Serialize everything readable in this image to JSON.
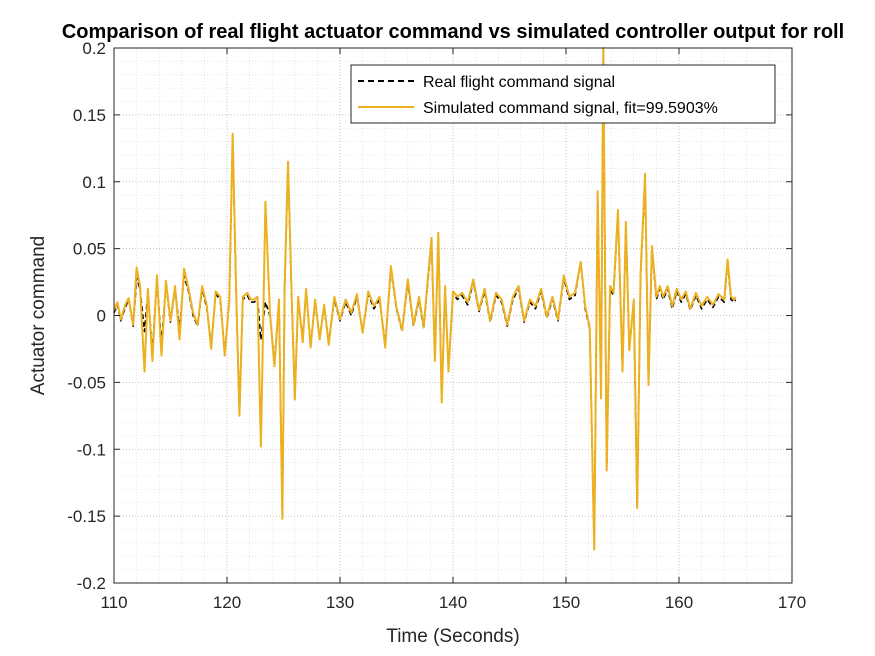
{
  "chart_data": {
    "type": "line",
    "title": "Comparison of real flight actuator command vs simulated controller output for roll",
    "xlabel": "Time (Seconds)",
    "ylabel": "Actuator command",
    "xlim": [
      110,
      170
    ],
    "ylim": [
      -0.2,
      0.2
    ],
    "xticks": [
      110,
      120,
      130,
      140,
      150,
      160,
      170
    ],
    "yticks": [
      -0.2,
      -0.15,
      -0.1,
      -0.05,
      0,
      0.05,
      0.1,
      0.15,
      0.2
    ],
    "ytick_labels": [
      "-0.2",
      "-0.15",
      "-0.1",
      "-0.05",
      "0",
      "0.05",
      "0.1",
      "0.15",
      "0.2"
    ],
    "grid": "major and minor, dotted",
    "legend_position": "top-right",
    "series": [
      {
        "name": "Real flight command signal",
        "color": "#000000",
        "style": "dashed",
        "x": [
          110,
          110.3,
          110.6,
          111,
          111.3,
          111.7,
          112,
          112.3,
          112.7,
          113,
          113.4,
          113.8,
          114.2,
          114.6,
          115,
          115.4,
          115.8,
          116.2,
          116.6,
          117,
          117.4,
          117.8,
          118.2,
          118.6,
          119,
          119.4,
          119.8,
          120.2,
          120.5,
          120.8,
          121.1,
          121.4,
          121.8,
          122.1,
          122.4,
          122.7,
          123,
          123.4,
          123.8,
          124.2,
          124.6,
          124.9,
          125.1,
          125.4,
          125.7,
          126,
          126.3,
          126.7,
          127,
          127.4,
          127.8,
          128.2,
          128.6,
          129,
          129.5,
          130,
          130.5,
          131,
          131.5,
          132,
          132.5,
          133,
          133.5,
          134,
          134.5,
          135,
          135.5,
          136,
          136.5,
          137,
          137.4,
          137.8,
          138.1,
          138.4,
          138.7,
          139,
          139.3,
          139.6,
          140,
          140.4,
          140.8,
          141.3,
          141.8,
          142.3,
          142.8,
          143.3,
          143.8,
          144.3,
          144.8,
          145.3,
          145.8,
          146.3,
          146.8,
          147.3,
          147.8,
          148.3,
          148.8,
          149.3,
          149.8,
          150.3,
          150.8,
          151.3,
          151.7,
          152.1,
          152.5,
          152.8,
          153.1,
          153.3,
          153.6,
          153.9,
          154.2,
          154.6,
          155,
          155.3,
          155.6,
          156,
          156.3,
          156.6,
          157,
          157.3,
          157.6,
          158,
          158.3,
          158.6,
          159,
          159.4,
          159.8,
          160.2,
          160.6,
          161,
          161.5,
          162,
          162.5,
          163,
          163.5,
          164,
          164.3,
          164.6,
          164.9,
          165
        ],
        "y": [
          0.002,
          0.008,
          -0.004,
          0.006,
          0.012,
          -0.008,
          0.028,
          0.02,
          -0.012,
          0.018,
          -0.028,
          0.028,
          -0.022,
          0.024,
          -0.005,
          0.02,
          -0.01,
          0.03,
          0.018,
          0.0,
          -0.008,
          0.02,
          0.006,
          -0.022,
          0.016,
          0.012,
          -0.028,
          0.01,
          0.132,
          0.02,
          -0.074,
          0.012,
          0.015,
          0.01,
          0.01,
          0.012,
          -0.018,
          0.01,
          0.0,
          -0.035,
          0.01,
          -0.151,
          0.02,
          0.113,
          0.02,
          -0.062,
          0.012,
          -0.018,
          0.018,
          -0.022,
          0.01,
          -0.016,
          0.006,
          -0.02,
          0.012,
          -0.004,
          0.01,
          0.0,
          0.014,
          -0.012,
          0.016,
          0.005,
          0.012,
          -0.022,
          0.035,
          0.005,
          -0.012,
          0.025,
          -0.008,
          0.012,
          -0.01,
          0.028,
          0.055,
          -0.032,
          0.06,
          -0.063,
          0.02,
          -0.04,
          0.016,
          0.012,
          0.015,
          0.008,
          0.025,
          0.003,
          0.018,
          -0.005,
          0.015,
          0.01,
          -0.008,
          0.012,
          0.02,
          -0.005,
          0.01,
          0.005,
          0.018,
          -0.002,
          0.012,
          -0.004,
          0.028,
          0.012,
          0.015,
          0.04,
          0.005,
          -0.01,
          -0.174,
          0.092,
          -0.06,
          0.2,
          -0.115,
          0.02,
          0.015,
          0.077,
          -0.04,
          0.068,
          -0.025,
          0.01,
          -0.143,
          0.03,
          0.102,
          -0.052,
          0.05,
          0.012,
          0.02,
          0.012,
          0.02,
          0.005,
          0.018,
          0.01,
          0.016,
          0.004,
          0.015,
          0.005,
          0.012,
          0.006,
          0.014,
          0.01,
          0.04,
          0.012,
          0.01,
          0.012
        ]
      },
      {
        "name": "Simulated command signal, fit=99.5903%",
        "color": "#EDB120",
        "style": "solid",
        "x": [
          110,
          110.3,
          110.6,
          111,
          111.3,
          111.7,
          112,
          112.3,
          112.7,
          113,
          113.4,
          113.8,
          114.2,
          114.6,
          115,
          115.4,
          115.8,
          116.2,
          116.6,
          117,
          117.4,
          117.8,
          118.2,
          118.6,
          119,
          119.4,
          119.8,
          120.2,
          120.5,
          120.8,
          121.1,
          121.4,
          121.8,
          122.1,
          122.4,
          122.7,
          123,
          123.4,
          123.8,
          124.2,
          124.6,
          124.9,
          125.1,
          125.4,
          125.7,
          126,
          126.3,
          126.7,
          127,
          127.4,
          127.8,
          128.2,
          128.6,
          129,
          129.5,
          130,
          130.5,
          131,
          131.5,
          132,
          132.5,
          133,
          133.5,
          134,
          134.5,
          135,
          135.5,
          136,
          136.5,
          137,
          137.4,
          137.8,
          138.1,
          138.4,
          138.7,
          139,
          139.3,
          139.6,
          140,
          140.4,
          140.8,
          141.3,
          141.8,
          142.3,
          142.8,
          143.3,
          143.8,
          144.3,
          144.8,
          145.3,
          145.8,
          146.3,
          146.8,
          147.3,
          147.8,
          148.3,
          148.8,
          149.3,
          149.8,
          150.3,
          150.8,
          151.3,
          151.7,
          152.1,
          152.5,
          152.8,
          153.1,
          153.3,
          153.6,
          153.9,
          154.2,
          154.6,
          155,
          155.3,
          155.6,
          156,
          156.3,
          156.6,
          157,
          157.3,
          157.6,
          158,
          158.3,
          158.6,
          159,
          159.4,
          159.8,
          160.2,
          160.6,
          161,
          161.5,
          162,
          162.5,
          163,
          163.5,
          164,
          164.3,
          164.6,
          164.9,
          165
        ],
        "y": [
          0.004,
          0.01,
          -0.003,
          0.008,
          0.013,
          -0.007,
          0.036,
          0.022,
          -0.042,
          0.02,
          -0.034,
          0.03,
          -0.03,
          0.026,
          -0.004,
          0.022,
          -0.018,
          0.035,
          0.02,
          0.002,
          -0.007,
          0.022,
          0.008,
          -0.025,
          0.018,
          0.014,
          -0.03,
          0.012,
          0.136,
          0.022,
          -0.075,
          0.014,
          0.017,
          0.012,
          0.012,
          0.014,
          -0.098,
          0.085,
          0.002,
          -0.038,
          0.012,
          -0.152,
          0.022,
          0.115,
          0.022,
          -0.063,
          0.014,
          -0.02,
          0.02,
          -0.024,
          0.012,
          -0.018,
          0.008,
          -0.022,
          0.014,
          -0.003,
          0.012,
          0.002,
          0.016,
          -0.013,
          0.018,
          0.007,
          0.014,
          -0.024,
          0.037,
          0.006,
          -0.011,
          0.027,
          -0.007,
          0.014,
          -0.009,
          0.03,
          0.058,
          -0.034,
          0.062,
          -0.065,
          0.022,
          -0.042,
          0.018,
          0.014,
          0.017,
          0.01,
          0.027,
          0.004,
          0.02,
          -0.004,
          0.017,
          0.012,
          -0.007,
          0.014,
          0.022,
          -0.004,
          0.012,
          0.007,
          0.02,
          -0.001,
          0.014,
          -0.003,
          0.03,
          0.014,
          0.017,
          0.04,
          0.007,
          -0.009,
          -0.175,
          0.093,
          -0.062,
          0.2,
          -0.116,
          0.022,
          0.017,
          0.079,
          -0.042,
          0.07,
          -0.026,
          0.012,
          -0.144,
          0.032,
          0.106,
          -0.052,
          0.052,
          0.014,
          0.022,
          0.014,
          0.022,
          0.007,
          0.02,
          0.012,
          0.018,
          0.005,
          0.017,
          0.007,
          0.014,
          0.008,
          0.016,
          0.012,
          0.042,
          0.014,
          0.012,
          0.014
        ]
      }
    ]
  }
}
